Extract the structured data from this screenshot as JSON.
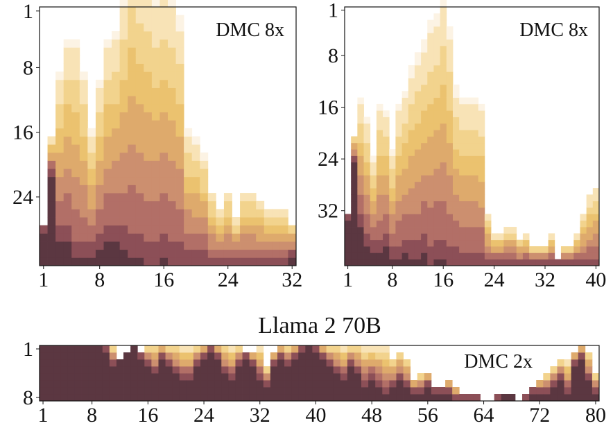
{
  "figure": {
    "title": "Llama 2 70B"
  },
  "colors": {
    "palette": [
      "#fcf3e4",
      "#f8e3b6",
      "#f2d38d",
      "#ebc26f",
      "#deaa6c",
      "#cc8f6f",
      "#b26f67",
      "#8c4f57",
      "#5b3741"
    ],
    "frame": "#111111",
    "background": "#ffffff"
  },
  "chart_data": [
    {
      "type": "heatmap",
      "panel_label": "DMC 8x",
      "x_ticks": [
        "1",
        "8",
        "16",
        "24",
        "32"
      ],
      "y_ticks": [
        "1",
        "8",
        "16",
        "24"
      ],
      "x_range": [
        1,
        32
      ],
      "y_range": [
        1,
        32
      ],
      "column_heights": [
        5,
        16,
        24,
        28,
        28,
        24,
        17,
        23,
        28,
        29,
        34,
        40,
        37,
        36,
        34,
        35,
        34,
        31,
        17,
        16,
        14,
        9,
        7,
        9,
        6,
        9,
        9,
        8,
        7,
        7,
        7,
        5
      ],
      "dark_base_heights": [
        4,
        11,
        3,
        3,
        1,
        1,
        1,
        2,
        3,
        3,
        2,
        1,
        1,
        0,
        0,
        1,
        0,
        0,
        0,
        0,
        0,
        0,
        0,
        0,
        0,
        0,
        0,
        0,
        0,
        0,
        0,
        1
      ]
    },
    {
      "type": "heatmap",
      "panel_label": "DMC 8x",
      "x_ticks": [
        "1",
        "8",
        "16",
        "24",
        "32",
        "40"
      ],
      "y_ticks": [
        "1",
        "8",
        "16",
        "24",
        "32"
      ],
      "x_range": [
        1,
        40
      ],
      "y_range": [
        1,
        40
      ],
      "column_heights": [
        8,
        20,
        26,
        23,
        17,
        25,
        24,
        18,
        25,
        27,
        31,
        33,
        35,
        38,
        39,
        42,
        37,
        28,
        26,
        26,
        26,
        25,
        8,
        5,
        5,
        6,
        6,
        4,
        5,
        3,
        3,
        3,
        5,
        1,
        3,
        3,
        5,
        8,
        11,
        12
      ],
      "dark_base_heights": [
        7,
        16,
        6,
        3,
        2,
        2,
        3,
        1,
        1,
        2,
        1,
        1,
        2,
        0,
        1,
        1,
        0,
        0,
        0,
        0,
        0,
        0,
        0,
        0,
        0,
        0,
        0,
        0,
        0,
        0,
        0,
        0,
        0,
        0,
        0,
        0,
        0,
        0,
        0,
        0
      ]
    },
    {
      "type": "heatmap",
      "panel_label": "DMC 2x",
      "x_ticks": [
        "1",
        "8",
        "16",
        "24",
        "32",
        "40",
        "48",
        "56",
        "64",
        "72",
        "80"
      ],
      "y_ticks": [
        "1",
        "8"
      ],
      "x_range": [
        1,
        80
      ],
      "y_range": [
        1,
        8
      ],
      "column_heights": [
        8,
        8,
        8,
        8,
        8,
        8,
        8,
        8,
        8,
        8,
        8,
        6,
        7,
        8,
        7,
        8,
        8,
        8,
        8,
        8,
        8,
        8,
        8,
        8,
        8,
        8,
        8,
        8,
        8,
        7,
        7,
        8,
        5,
        7,
        8,
        8,
        8,
        8,
        8,
        8,
        8,
        8,
        8,
        8,
        8,
        8,
        8,
        8,
        8,
        8,
        6,
        7,
        6,
        3,
        4,
        4,
        2,
        2,
        3,
        2,
        1,
        1,
        1,
        0,
        0,
        1,
        1,
        1,
        0,
        1,
        2,
        3,
        4,
        5,
        6,
        6,
        7,
        8,
        7,
        4
      ],
      "dark_base_heights": [
        8,
        8,
        8,
        8,
        8,
        8,
        8,
        8,
        8,
        7,
        5,
        6,
        7,
        8,
        6,
        5,
        4,
        6,
        5,
        4,
        3,
        3,
        5,
        6,
        7,
        6,
        4,
        3,
        5,
        6,
        5,
        3,
        2,
        5,
        6,
        5,
        6,
        7,
        8,
        7,
        6,
        5,
        4,
        3,
        5,
        4,
        2,
        3,
        2,
        1,
        2,
        3,
        2,
        1,
        1,
        2,
        1,
        1,
        1,
        0,
        0,
        0,
        0,
        0,
        0,
        0,
        1,
        1,
        0,
        0,
        1,
        1,
        1,
        2,
        3,
        1,
        5,
        6,
        3,
        1
      ]
    }
  ]
}
